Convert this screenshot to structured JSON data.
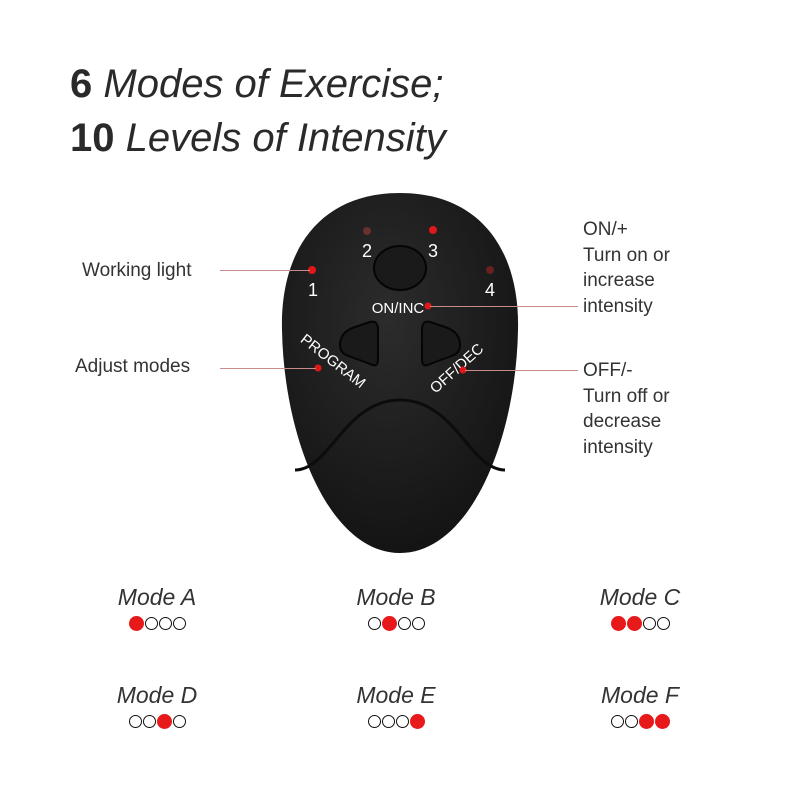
{
  "title": {
    "line1_number": "6",
    "line1_text": "Modes of Exercise;",
    "line2_number": "10",
    "line2_text": "Levels of Intensity"
  },
  "device": {
    "light_labels": [
      "1",
      "2",
      "3",
      "4"
    ],
    "on_inc_label": "ON/INC",
    "program_label": "PROGRAM",
    "off_dec_label": "OFF/DEC"
  },
  "callouts": {
    "working_light": "Working light",
    "adjust_modes": "Adjust modes",
    "on_title": "ON/+",
    "on_desc": [
      "Turn on or",
      "increase",
      "intensity"
    ],
    "off_title": "OFF/-",
    "off_desc": [
      "Turn off or",
      "decrease",
      "intensity"
    ]
  },
  "modes": [
    {
      "name": "Mode A",
      "lights": [
        1,
        0,
        0,
        0
      ]
    },
    {
      "name": "Mode B",
      "lights": [
        0,
        1,
        0,
        0
      ]
    },
    {
      "name": "Mode C",
      "lights": [
        1,
        1,
        0,
        0
      ]
    },
    {
      "name": "Mode D",
      "lights": [
        0,
        0,
        1,
        0
      ]
    },
    {
      "name": "Mode E",
      "lights": [
        0,
        0,
        0,
        1
      ]
    },
    {
      "name": "Mode F",
      "lights": [
        0,
        0,
        1,
        1
      ]
    }
  ],
  "colors": {
    "accent": "#e8191b",
    "device": "#1c1c1c"
  }
}
